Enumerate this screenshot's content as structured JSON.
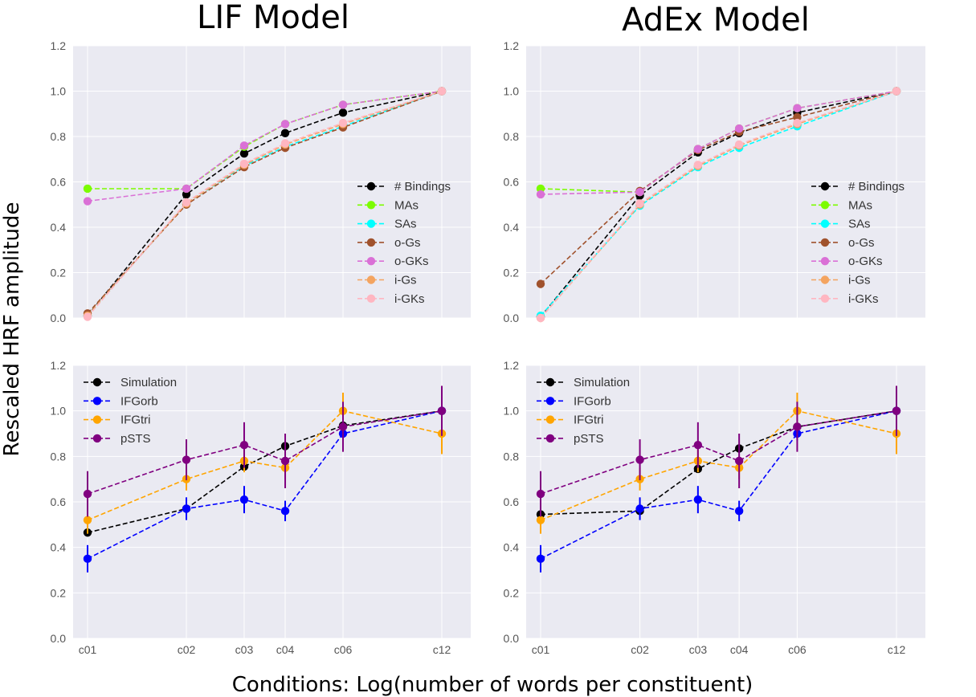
{
  "column_titles": [
    "LIF Model",
    "AdEx Model"
  ],
  "xlabel": "Conditions: Log(number of  words per constituent)",
  "ylabel": "Rescaled HRF amplitude",
  "chart_data": [
    {
      "type": "line",
      "title": "LIF Model",
      "categories": [
        "c01",
        "c02",
        "c03",
        "c04",
        "c06",
        "c12"
      ],
      "x": [
        1,
        2,
        3,
        4,
        6,
        12
      ],
      "x_scale": "log",
      "ylim": [
        0,
        1.2
      ],
      "yticks": [
        0.0,
        0.2,
        0.4,
        0.6,
        0.8,
        1.0,
        1.2
      ],
      "grid": true,
      "legend_position": "right",
      "series": [
        {
          "name": "# Bindings",
          "color": "#000000",
          "values": [
            0.01,
            0.545,
            0.725,
            0.815,
            0.905,
            1.0
          ]
        },
        {
          "name": "MAs",
          "color": "#7cfc00",
          "values": [
            0.57,
            0.57,
            0.755,
            0.855,
            0.94,
            1.0
          ]
        },
        {
          "name": "SAs",
          "color": "#00ffff",
          "values": [
            0.01,
            0.505,
            0.67,
            0.755,
            0.845,
            1.0
          ]
        },
        {
          "name": "o-Gs",
          "color": "#a0522d",
          "values": [
            0.02,
            0.5,
            0.665,
            0.75,
            0.84,
            1.0
          ]
        },
        {
          "name": "o-GKs",
          "color": "#da70d6",
          "values": [
            0.515,
            0.57,
            0.76,
            0.855,
            0.94,
            1.0
          ]
        },
        {
          "name": "i-Gs",
          "color": "#f4a460",
          "values": [
            0.01,
            0.505,
            0.675,
            0.765,
            0.855,
            1.0
          ]
        },
        {
          "name": "i-GKs",
          "color": "#ffb6c1",
          "values": [
            0.005,
            0.51,
            0.68,
            0.77,
            0.86,
            1.0
          ]
        }
      ]
    },
    {
      "type": "line",
      "title": "AdEx Model",
      "categories": [
        "c01",
        "c02",
        "c03",
        "c04",
        "c06",
        "c12"
      ],
      "x": [
        1,
        2,
        3,
        4,
        6,
        12
      ],
      "x_scale": "log",
      "ylim": [
        0,
        1.2
      ],
      "yticks": [
        0.0,
        0.2,
        0.4,
        0.6,
        0.8,
        1.0,
        1.2
      ],
      "grid": true,
      "legend_position": "right",
      "series": [
        {
          "name": "# Bindings",
          "color": "#000000",
          "values": [
            0.005,
            0.54,
            0.73,
            0.815,
            0.905,
            1.0
          ]
        },
        {
          "name": "MAs",
          "color": "#7cfc00",
          "values": [
            0.57,
            0.555,
            0.745,
            0.835,
            0.925,
            1.0
          ]
        },
        {
          "name": "SAs",
          "color": "#00ffff",
          "values": [
            0.01,
            0.495,
            0.665,
            0.75,
            0.845,
            1.0
          ]
        },
        {
          "name": "o-Gs",
          "color": "#a0522d",
          "values": [
            0.15,
            0.56,
            0.74,
            0.82,
            0.885,
            1.0
          ]
        },
        {
          "name": "o-GKs",
          "color": "#da70d6",
          "values": [
            0.545,
            0.555,
            0.745,
            0.835,
            0.925,
            1.0
          ]
        },
        {
          "name": "i-Gs",
          "color": "#f4a460",
          "values": [
            0.0,
            0.5,
            0.67,
            0.76,
            0.855,
            1.0
          ]
        },
        {
          "name": "i-GKs",
          "color": "#ffb6c1",
          "values": [
            0.0,
            0.505,
            0.675,
            0.765,
            0.86,
            1.0
          ]
        }
      ]
    },
    {
      "type": "line",
      "categories": [
        "c01",
        "c02",
        "c03",
        "c04",
        "c06",
        "c12"
      ],
      "x": [
        1,
        2,
        3,
        4,
        6,
        12
      ],
      "x_scale": "log",
      "ylim": [
        0,
        1.2
      ],
      "yticks": [
        0.0,
        0.2,
        0.4,
        0.6,
        0.8,
        1.0,
        1.2
      ],
      "grid": true,
      "legend_position": "top-left",
      "series": [
        {
          "name": "Simulation",
          "color": "#000000",
          "values": [
            0.465,
            0.57,
            0.755,
            0.845,
            0.935,
            1.0
          ]
        },
        {
          "name": "IFGorb",
          "color": "#0000ff",
          "values": [
            0.35,
            0.57,
            0.61,
            0.56,
            0.9,
            1.0
          ],
          "errors": [
            0.06,
            0.05,
            0.06,
            0.045,
            0.03,
            0.0
          ]
        },
        {
          "name": "IFGtri",
          "color": "#ffa500",
          "values": [
            0.52,
            0.7,
            0.78,
            0.75,
            1.0,
            0.9
          ],
          "errors": [
            0.06,
            0.05,
            0.05,
            0.05,
            0.08,
            0.09
          ]
        },
        {
          "name": "pSTS",
          "color": "#800080",
          "values": [
            0.635,
            0.785,
            0.85,
            0.78,
            0.93,
            1.0
          ],
          "errors": [
            0.1,
            0.09,
            0.1,
            0.12,
            0.11,
            0.11
          ]
        }
      ]
    },
    {
      "type": "line",
      "categories": [
        "c01",
        "c02",
        "c03",
        "c04",
        "c06",
        "c12"
      ],
      "x": [
        1,
        2,
        3,
        4,
        6,
        12
      ],
      "x_scale": "log",
      "ylim": [
        0,
        1.2
      ],
      "yticks": [
        0.0,
        0.2,
        0.4,
        0.6,
        0.8,
        1.0,
        1.2
      ],
      "grid": true,
      "legend_position": "top-left",
      "series": [
        {
          "name": "Simulation",
          "color": "#000000",
          "values": [
            0.545,
            0.56,
            0.745,
            0.835,
            0.93,
            1.0
          ]
        },
        {
          "name": "IFGorb",
          "color": "#0000ff",
          "values": [
            0.35,
            0.57,
            0.61,
            0.56,
            0.9,
            1.0
          ],
          "errors": [
            0.06,
            0.05,
            0.06,
            0.045,
            0.03,
            0.0
          ]
        },
        {
          "name": "IFGtri",
          "color": "#ffa500",
          "values": [
            0.52,
            0.7,
            0.78,
            0.75,
            1.0,
            0.9
          ],
          "errors": [
            0.06,
            0.05,
            0.05,
            0.05,
            0.08,
            0.09
          ]
        },
        {
          "name": "pSTS",
          "color": "#800080",
          "values": [
            0.635,
            0.785,
            0.85,
            0.78,
            0.93,
            1.0
          ],
          "errors": [
            0.1,
            0.09,
            0.1,
            0.12,
            0.11,
            0.11
          ]
        }
      ]
    }
  ]
}
